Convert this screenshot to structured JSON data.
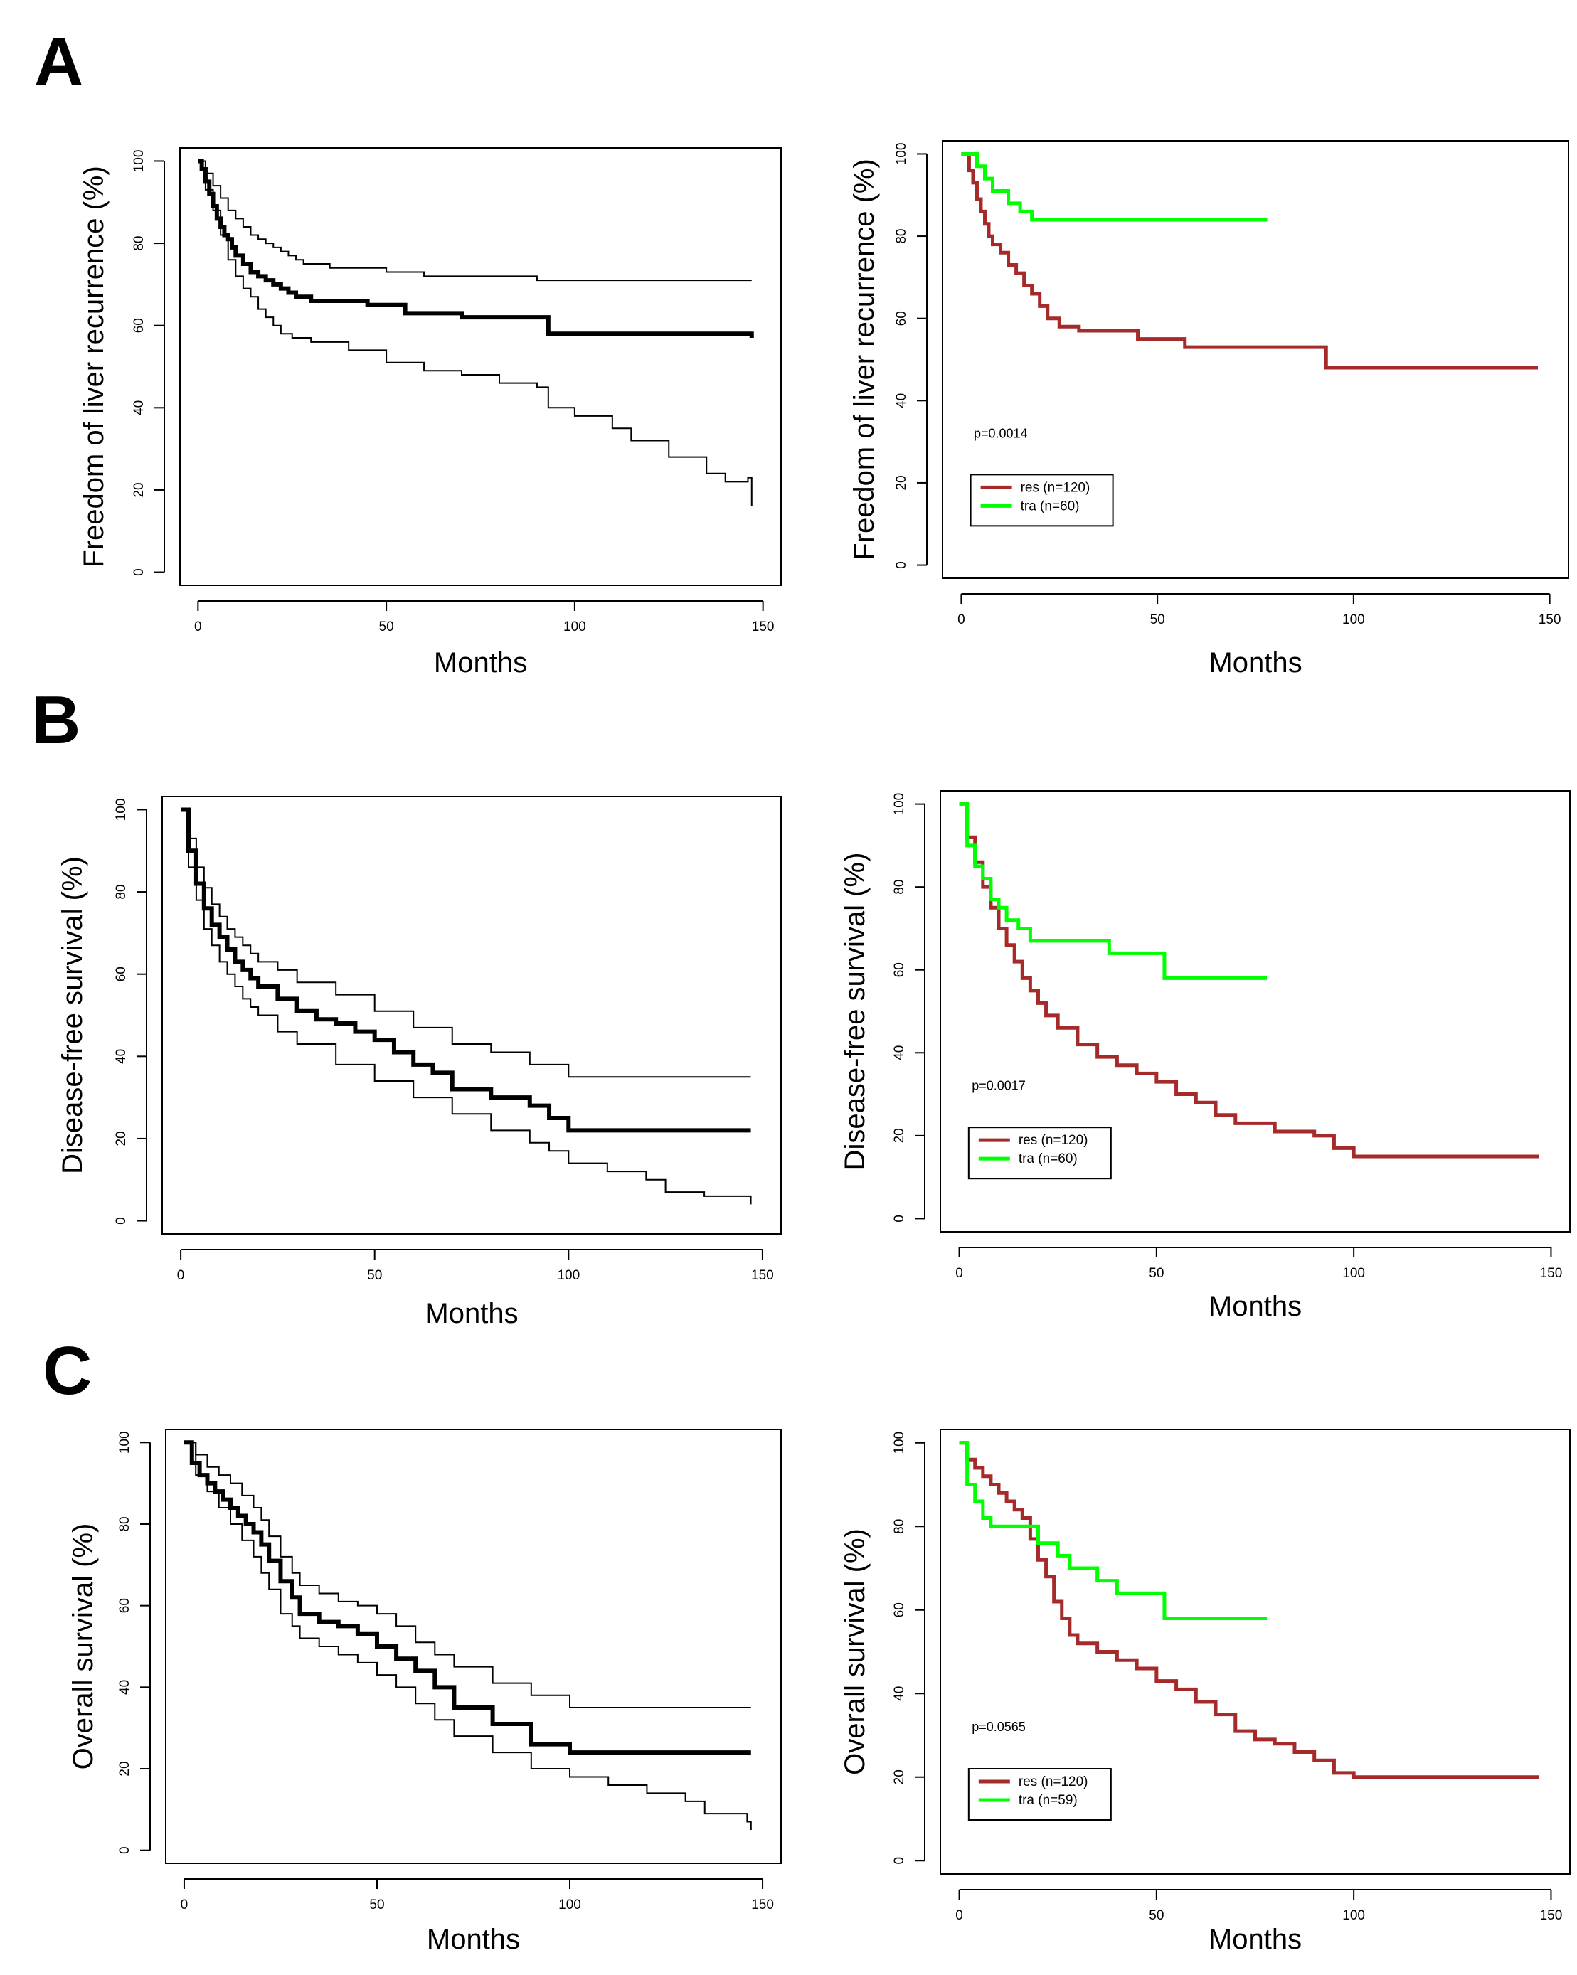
{
  "panel_labels": [
    "A",
    "B",
    "C"
  ],
  "chart_data": [
    {
      "id": "A-left",
      "type": "line",
      "title": "",
      "xlabel": "Months",
      "ylabel": "Freedom of liver recurrence (%)",
      "xlim": [
        0,
        150
      ],
      "ylim": [
        0,
        100
      ],
      "xticks": [
        "0",
        "50",
        "100",
        "150"
      ],
      "yticks": [
        "0",
        "20",
        "40",
        "60",
        "80",
        "100"
      ],
      "series": [
        {
          "name": "estimate",
          "color": "#000000",
          "role": "main",
          "x": [
            0,
            1,
            2,
            3,
            4,
            5,
            6,
            7,
            8,
            9,
            10,
            12,
            14,
            16,
            18,
            20,
            22,
            24,
            26,
            28,
            30,
            35,
            45,
            55,
            70,
            93,
            147
          ],
          "y": [
            100,
            98,
            95,
            92,
            89,
            86,
            84,
            82,
            81,
            79,
            77,
            75,
            73,
            72,
            71,
            70,
            69,
            68,
            67,
            67,
            66,
            66,
            65,
            63,
            62,
            58,
            57
          ]
        },
        {
          "name": "upper 95% CI",
          "color": "#000000",
          "role": "ci",
          "x": [
            0,
            2,
            4,
            6,
            8,
            10,
            12,
            14,
            16,
            18,
            20,
            22,
            24,
            26,
            28,
            30,
            35,
            40,
            50,
            60,
            90,
            147
          ],
          "y": [
            100,
            97,
            94,
            91,
            88,
            86,
            84,
            82,
            81,
            80,
            79,
            78,
            77,
            76,
            75,
            75,
            74,
            74,
            73,
            72,
            71,
            71
          ]
        },
        {
          "name": "lower 95% CI",
          "color": "#000000",
          "role": "ci",
          "x": [
            0,
            2,
            4,
            6,
            8,
            10,
            12,
            14,
            16,
            18,
            20,
            22,
            25,
            30,
            40,
            50,
            60,
            70,
            80,
            90,
            93,
            100,
            110,
            115,
            125,
            135,
            140,
            146,
            147
          ],
          "y": [
            100,
            93,
            88,
            82,
            76,
            72,
            69,
            67,
            64,
            62,
            60,
            58,
            57,
            56,
            54,
            51,
            49,
            48,
            46,
            45,
            40,
            38,
            35,
            32,
            28,
            24,
            22,
            23,
            16
          ]
        }
      ]
    },
    {
      "id": "A-right",
      "type": "line",
      "title": "",
      "xlabel": "Months",
      "ylabel": "Freedom of liver recurrence (%)",
      "xlim": [
        0,
        150
      ],
      "ylim": [
        0,
        100
      ],
      "xticks": [
        "0",
        "50",
        "100",
        "150"
      ],
      "yticks": [
        "0",
        "20",
        "40",
        "60",
        "80",
        "100"
      ],
      "annotation": "p=0.0014",
      "legend": [
        {
          "label": "res (n=120)",
          "color": "#A52A2A"
        },
        {
          "label": "tra (n=60)",
          "color": "#00FF00"
        }
      ],
      "series": [
        {
          "name": "res (n=120)",
          "color": "#A52A2A",
          "x": [
            0,
            2,
            3,
            4,
            5,
            6,
            7,
            8,
            10,
            12,
            14,
            16,
            18,
            20,
            22,
            25,
            30,
            45,
            57,
            93,
            147
          ],
          "y": [
            100,
            96,
            93,
            89,
            86,
            83,
            80,
            78,
            76,
            73,
            71,
            68,
            66,
            63,
            60,
            58,
            57,
            55,
            53,
            48,
            48
          ]
        },
        {
          "name": "tra (n=60)",
          "color": "#00FF00",
          "x": [
            0,
            3,
            4,
            6,
            8,
            12,
            15,
            18,
            78
          ],
          "y": [
            100,
            100,
            97,
            94,
            91,
            88,
            86,
            84,
            84
          ]
        }
      ]
    },
    {
      "id": "B-left",
      "type": "line",
      "title": "",
      "xlabel": "Months",
      "ylabel": "Disease-free survival (%)",
      "xlim": [
        0,
        150
      ],
      "ylim": [
        0,
        100
      ],
      "xticks": [
        "0",
        "50",
        "100",
        "150"
      ],
      "yticks": [
        "0",
        "20",
        "40",
        "60",
        "80",
        "100"
      ],
      "series": [
        {
          "name": "estimate",
          "color": "#000000",
          "role": "main",
          "x": [
            0,
            2,
            4,
            6,
            8,
            10,
            12,
            14,
            16,
            18,
            20,
            25,
            30,
            35,
            40,
            45,
            50,
            55,
            60,
            65,
            70,
            80,
            90,
            95,
            100,
            120,
            147
          ],
          "y": [
            100,
            90,
            82,
            76,
            72,
            69,
            66,
            63,
            61,
            59,
            57,
            54,
            51,
            49,
            48,
            46,
            44,
            41,
            38,
            36,
            32,
            30,
            28,
            25,
            22,
            22,
            22
          ]
        },
        {
          "name": "upper 95% CI",
          "color": "#000000",
          "role": "ci",
          "x": [
            0,
            2,
            4,
            6,
            8,
            10,
            12,
            14,
            16,
            18,
            20,
            25,
            30,
            40,
            50,
            60,
            70,
            80,
            90,
            100,
            147
          ],
          "y": [
            100,
            93,
            86,
            81,
            77,
            74,
            71,
            69,
            67,
            65,
            63,
            61,
            58,
            55,
            51,
            47,
            43,
            41,
            38,
            35,
            35
          ]
        },
        {
          "name": "lower 95% CI",
          "color": "#000000",
          "role": "ci",
          "x": [
            0,
            2,
            4,
            6,
            8,
            10,
            12,
            14,
            16,
            18,
            20,
            25,
            30,
            40,
            50,
            60,
            70,
            80,
            90,
            95,
            100,
            110,
            120,
            125,
            135,
            146,
            147
          ],
          "y": [
            100,
            86,
            78,
            71,
            67,
            63,
            60,
            57,
            54,
            52,
            50,
            46,
            43,
            38,
            34,
            30,
            26,
            22,
            19,
            17,
            14,
            12,
            10,
            7,
            6,
            6,
            4
          ]
        }
      ]
    },
    {
      "id": "B-right",
      "type": "line",
      "title": "",
      "xlabel": "Months",
      "ylabel": "Disease-free survival (%)",
      "xlim": [
        0,
        150
      ],
      "ylim": [
        0,
        100
      ],
      "xticks": [
        "0",
        "50",
        "100",
        "150"
      ],
      "yticks": [
        "0",
        "20",
        "40",
        "60",
        "80",
        "100"
      ],
      "annotation": "p=0.0017",
      "legend": [
        {
          "label": "res (n=120)",
          "color": "#A52A2A"
        },
        {
          "label": "tra (n=60)",
          "color": "#00FF00"
        }
      ],
      "series": [
        {
          "name": "res (n=120)",
          "color": "#A52A2A",
          "x": [
            0,
            2,
            4,
            6,
            8,
            10,
            12,
            14,
            16,
            18,
            20,
            22,
            25,
            30,
            35,
            40,
            45,
            50,
            55,
            60,
            65,
            70,
            80,
            90,
            95,
            100,
            147
          ],
          "y": [
            100,
            92,
            86,
            80,
            75,
            70,
            66,
            62,
            58,
            55,
            52,
            49,
            46,
            42,
            39,
            37,
            35,
            33,
            30,
            28,
            25,
            23,
            21,
            20,
            17,
            15,
            15
          ]
        },
        {
          "name": "tra (n=60)",
          "color": "#00FF00",
          "x": [
            0,
            2,
            4,
            6,
            8,
            10,
            12,
            15,
            18,
            25,
            38,
            52,
            78
          ],
          "y": [
            100,
            90,
            85,
            82,
            77,
            75,
            72,
            70,
            67,
            67,
            64,
            58,
            58
          ]
        }
      ]
    },
    {
      "id": "C-left",
      "type": "line",
      "title": "",
      "xlabel": "Months",
      "ylabel": "Overall survival (%)",
      "xlim": [
        0,
        150
      ],
      "ylim": [
        0,
        100
      ],
      "xticks": [
        "0",
        "50",
        "100",
        "150"
      ],
      "yticks": [
        "0",
        "20",
        "40",
        "60",
        "80",
        "100"
      ],
      "series": [
        {
          "name": "estimate",
          "color": "#000000",
          "role": "main",
          "x": [
            0,
            2,
            4,
            6,
            8,
            10,
            12,
            14,
            16,
            18,
            20,
            22,
            25,
            28,
            30,
            35,
            40,
            45,
            50,
            55,
            60,
            65,
            70,
            80,
            90,
            100,
            147
          ],
          "y": [
            100,
            95,
            92,
            90,
            88,
            86,
            84,
            82,
            80,
            78,
            75,
            71,
            66,
            62,
            58,
            56,
            55,
            53,
            50,
            47,
            44,
            40,
            35,
            31,
            26,
            24,
            24
          ]
        },
        {
          "name": "upper 95% CI",
          "color": "#000000",
          "role": "ci",
          "x": [
            0,
            3,
            6,
            9,
            12,
            15,
            18,
            20,
            22,
            25,
            28,
            30,
            35,
            40,
            45,
            50,
            55,
            60,
            65,
            70,
            80,
            90,
            100,
            147
          ],
          "y": [
            100,
            97,
            94,
            92,
            90,
            87,
            84,
            81,
            77,
            72,
            68,
            65,
            63,
            61,
            60,
            58,
            55,
            51,
            48,
            45,
            41,
            38,
            35,
            35
          ]
        },
        {
          "name": "lower 95% CI",
          "color": "#000000",
          "role": "ci",
          "x": [
            0,
            3,
            6,
            9,
            12,
            15,
            18,
            20,
            22,
            25,
            28,
            30,
            35,
            40,
            45,
            50,
            55,
            60,
            65,
            70,
            80,
            90,
            100,
            110,
            120,
            130,
            135,
            146,
            147
          ],
          "y": [
            100,
            92,
            88,
            84,
            80,
            76,
            72,
            68,
            64,
            58,
            55,
            52,
            50,
            48,
            46,
            43,
            40,
            36,
            32,
            28,
            24,
            20,
            18,
            16,
            14,
            12,
            9,
            7,
            5
          ]
        }
      ]
    },
    {
      "id": "C-right",
      "type": "line",
      "title": "",
      "xlabel": "Months",
      "ylabel": "Overall survival (%)",
      "xlim": [
        0,
        150
      ],
      "ylim": [
        0,
        100
      ],
      "xticks": [
        "0",
        "50",
        "100",
        "150"
      ],
      "yticks": [
        "0",
        "20",
        "40",
        "60",
        "80",
        "100"
      ],
      "annotation": "p=0.0565",
      "legend": [
        {
          "label": "res (n=120)",
          "color": "#A52A2A"
        },
        {
          "label": "tra (n=59)",
          "color": "#00FF00"
        }
      ],
      "series": [
        {
          "name": "res (n=120)",
          "color": "#A52A2A",
          "x": [
            0,
            2,
            4,
            6,
            8,
            10,
            12,
            14,
            16,
            18,
            20,
            22,
            24,
            26,
            28,
            30,
            35,
            40,
            45,
            50,
            55,
            60,
            65,
            70,
            75,
            80,
            85,
            90,
            95,
            100,
            147
          ],
          "y": [
            100,
            96,
            94,
            92,
            90,
            88,
            86,
            84,
            82,
            77,
            72,
            68,
            62,
            58,
            54,
            52,
            50,
            48,
            46,
            43,
            41,
            38,
            35,
            31,
            29,
            28,
            26,
            24,
            21,
            20,
            20
          ]
        },
        {
          "name": "tra (n=59)",
          "color": "#00FF00",
          "x": [
            0,
            2,
            4,
            6,
            8,
            15,
            20,
            25,
            28,
            35,
            40,
            52,
            78
          ],
          "y": [
            100,
            90,
            86,
            82,
            80,
            80,
            76,
            73,
            70,
            67,
            64,
            58,
            58
          ]
        }
      ]
    }
  ]
}
